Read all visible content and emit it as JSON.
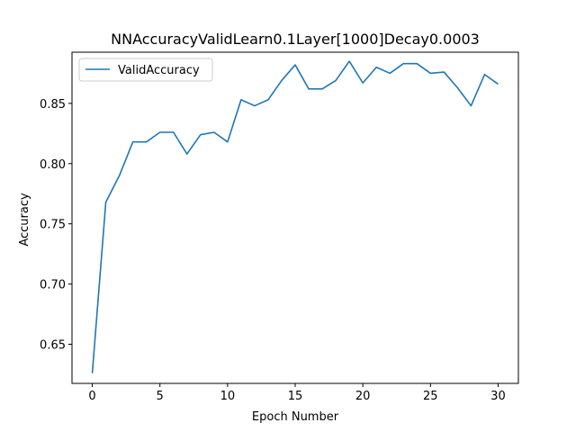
{
  "chart_data": {
    "type": "line",
    "title": "NNAccuracyValidLearn0.1Layer[1000]Decay0.0003",
    "xlabel": "Epoch Number",
    "ylabel": "Accuracy",
    "xlim": [
      -1.5,
      31.5
    ],
    "ylim": [
      0.6175,
      0.8925
    ],
    "xticks": [
      0,
      5,
      10,
      15,
      20,
      25,
      30
    ],
    "yticks": [
      0.65,
      0.7,
      0.75,
      0.8,
      0.85
    ],
    "xtick_labels": [
      "0",
      "5",
      "10",
      "15",
      "20",
      "25",
      "30"
    ],
    "ytick_labels": [
      "0.65",
      "0.70",
      "0.75",
      "0.80",
      "0.85"
    ],
    "grid": false,
    "legend_position": "top-left",
    "series": [
      {
        "name": "ValidAccuracy",
        "color": "#1f77b4",
        "x": [
          0,
          1,
          2,
          3,
          4,
          5,
          6,
          7,
          8,
          9,
          10,
          11,
          12,
          13,
          14,
          15,
          16,
          17,
          18,
          19,
          20,
          21,
          22,
          23,
          24,
          25,
          26,
          27,
          28,
          29,
          30
        ],
        "values": [
          0.626,
          0.768,
          0.79,
          0.818,
          0.818,
          0.826,
          0.826,
          0.808,
          0.824,
          0.826,
          0.818,
          0.853,
          0.848,
          0.853,
          0.869,
          0.882,
          0.862,
          0.862,
          0.869,
          0.885,
          0.867,
          0.88,
          0.875,
          0.883,
          0.883,
          0.875,
          0.876,
          0.863,
          0.848,
          0.874,
          0.866
        ]
      }
    ]
  }
}
